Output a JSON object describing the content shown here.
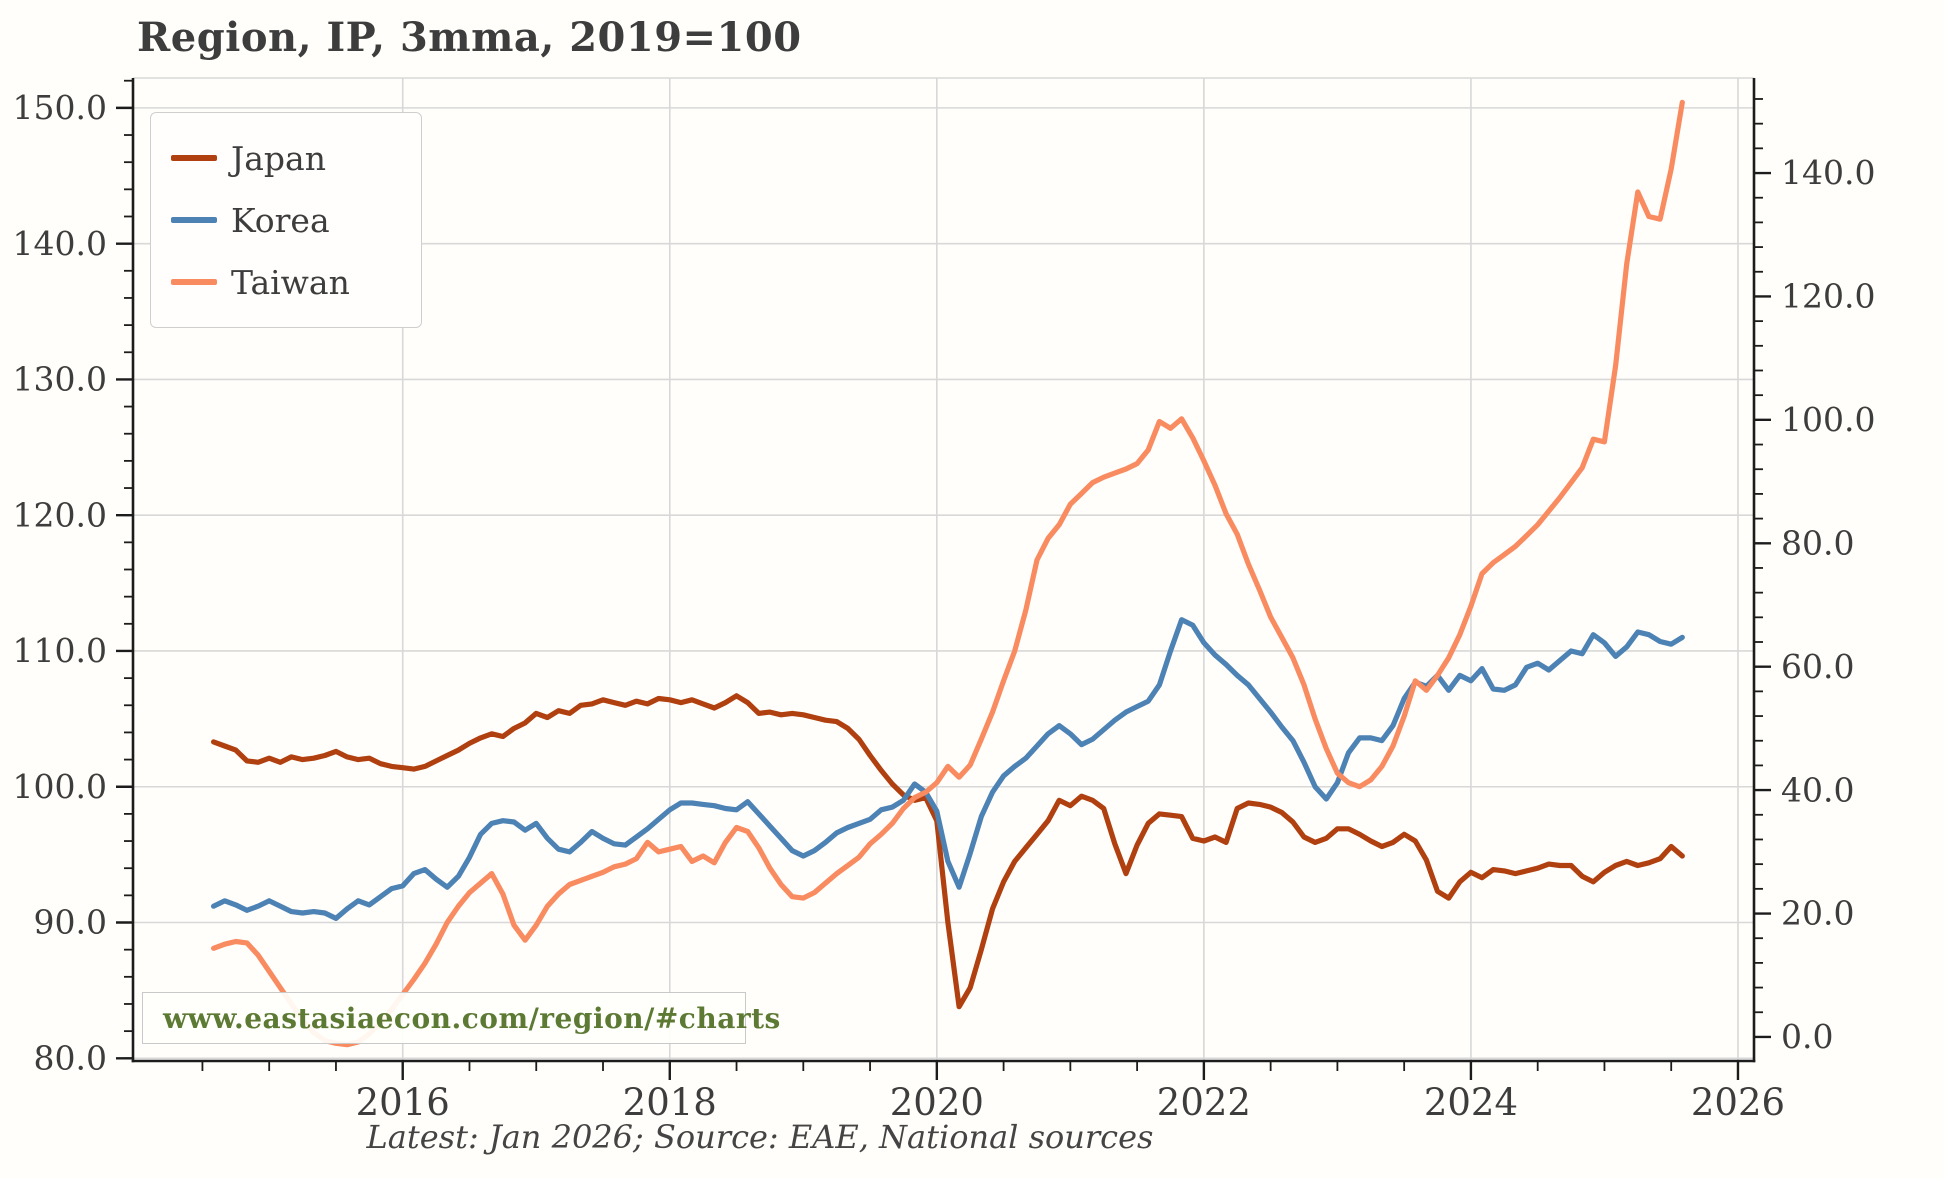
{
  "title": "Region, IP, 3mma, 2019=100",
  "watermark": "www.eastasiaecon.com/region/#charts",
  "caption": "Latest: Jan 2026; Source: EAE, National sources",
  "colors": {
    "background": "#fffefa",
    "plot_background": "#fffefb",
    "grid": "#d8d8d8",
    "spine": "#1c1c1c",
    "tick": "#1c1c1c",
    "text": "#3d3d3d",
    "caption_text": "#444444",
    "watermark_text": "#5c7a33",
    "japan": "#b0400f",
    "korea": "#4d82b4",
    "taiwan": "#f98b61"
  },
  "chart_data": {
    "type": "line",
    "title": "Region, IP, 3mma, 2019=100",
    "xlabel": "",
    "ylabel": "",
    "legend_position": "upper-left",
    "grid": true,
    "x_start": 2014.5833,
    "x_step_years": 0.083333,
    "x_axis": {
      "min": 2013.98,
      "max": 2026.12,
      "tick_values": [
        2016,
        2018,
        2020,
        2022,
        2024,
        2026
      ],
      "tick_labels": [
        "2016",
        "2018",
        "2020",
        "2022",
        "2024",
        "2026"
      ],
      "minor_step": 0.5
    },
    "left_axis": {
      "min": 79.8,
      "max": 152.2,
      "tick_values": [
        80,
        90,
        100,
        110,
        120,
        130,
        140,
        150
      ],
      "tick_labels": [
        "80.0",
        "90.0",
        "100.0",
        "110.0",
        "120.0",
        "130.0",
        "140.0",
        "150.0"
      ],
      "minor_step": 2
    },
    "right_axis": {
      "min": -3.9,
      "max": 155.4,
      "tick_values": [
        0,
        20,
        40,
        60,
        80,
        100,
        120,
        140
      ],
      "tick_labels": [
        "0.0",
        "20.0",
        "40.0",
        "60.0",
        "80.0",
        "100.0",
        "120.0",
        "140.0"
      ],
      "minor_step": 4
    },
    "series": [
      {
        "name": "Japan",
        "color": "#b0400f",
        "values": [
          103.3,
          103.0,
          102.7,
          101.9,
          101.8,
          102.1,
          101.8,
          102.2,
          102.0,
          102.1,
          102.3,
          102.6,
          102.2,
          102.0,
          102.1,
          101.7,
          101.5,
          101.4,
          101.3,
          101.5,
          101.9,
          102.3,
          102.7,
          103.2,
          103.6,
          103.9,
          103.7,
          104.3,
          104.7,
          105.4,
          105.1,
          105.6,
          105.4,
          106.0,
          106.1,
          106.4,
          106.2,
          106.0,
          106.3,
          106.1,
          106.5,
          106.4,
          106.2,
          106.4,
          106.1,
          105.8,
          106.2,
          106.7,
          106.2,
          105.4,
          105.5,
          105.3,
          105.4,
          105.3,
          105.1,
          104.9,
          104.8,
          104.3,
          103.5,
          102.3,
          101.2,
          100.2,
          99.4,
          99.0,
          99.2,
          97.5,
          90.0,
          83.8,
          85.2,
          88.0,
          91.0,
          93.0,
          94.5,
          95.5,
          96.5,
          97.5,
          99.0,
          98.6,
          99.3,
          99.0,
          98.4,
          95.8,
          93.6,
          95.7,
          97.3,
          98.0,
          97.9,
          97.8,
          96.2,
          96.0,
          96.3,
          95.9,
          98.4,
          98.8,
          98.7,
          98.5,
          98.1,
          97.4,
          96.3,
          95.9,
          96.2,
          96.9,
          96.9,
          96.5,
          96.0,
          95.6,
          95.9,
          96.5,
          96.0,
          94.6,
          92.3,
          91.8,
          93.0,
          93.7,
          93.3,
          93.9,
          93.8,
          93.6,
          93.8,
          94.0,
          94.3,
          94.2,
          94.2,
          93.4,
          93.0,
          93.7,
          94.2,
          94.5,
          94.2,
          94.4,
          94.7,
          95.6,
          94.9
        ]
      },
      {
        "name": "Korea",
        "color": "#4d82b4",
        "values": [
          91.2,
          91.6,
          91.3,
          90.9,
          91.2,
          91.6,
          91.2,
          90.8,
          90.7,
          90.8,
          90.7,
          90.3,
          91.0,
          91.6,
          91.3,
          91.9,
          92.5,
          92.7,
          93.6,
          93.9,
          93.2,
          92.6,
          93.4,
          94.8,
          96.5,
          97.3,
          97.5,
          97.4,
          96.8,
          97.3,
          96.2,
          95.4,
          95.2,
          95.9,
          96.7,
          96.2,
          95.8,
          95.7,
          96.3,
          96.9,
          97.6,
          98.3,
          98.8,
          98.8,
          98.7,
          98.6,
          98.4,
          98.3,
          98.9,
          98.0,
          97.1,
          96.2,
          95.3,
          94.9,
          95.3,
          95.9,
          96.6,
          97.0,
          97.3,
          97.6,
          98.3,
          98.5,
          99.0,
          100.2,
          99.6,
          98.2,
          94.5,
          92.6,
          95.1,
          97.8,
          99.6,
          100.8,
          101.5,
          102.1,
          103.0,
          103.9,
          104.5,
          103.9,
          103.1,
          103.5,
          104.2,
          104.9,
          105.5,
          105.9,
          106.3,
          107.5,
          110.0,
          112.3,
          111.9,
          110.6,
          109.7,
          109.0,
          108.2,
          107.5,
          106.5,
          105.5,
          104.4,
          103.4,
          101.8,
          100.0,
          99.1,
          100.3,
          102.5,
          103.6,
          103.6,
          103.4,
          104.5,
          106.5,
          107.7,
          107.4,
          108.2,
          107.1,
          108.2,
          107.8,
          108.7,
          107.2,
          107.1,
          107.5,
          108.8,
          109.1,
          108.6,
          109.3,
          110.0,
          109.8,
          111.2,
          110.6,
          109.6,
          110.3,
          111.4,
          111.2,
          110.7,
          110.5,
          111.0
        ]
      },
      {
        "name": "Taiwan",
        "color": "#f98b61",
        "values": [
          88.1,
          88.4,
          88.6,
          88.5,
          87.6,
          86.4,
          85.2,
          84.0,
          82.8,
          81.9,
          81.3,
          81.1,
          81.0,
          81.2,
          81.8,
          82.6,
          83.6,
          84.7,
          85.8,
          87.0,
          88.4,
          90.0,
          91.2,
          92.2,
          92.9,
          93.6,
          92.1,
          89.8,
          88.7,
          89.8,
          91.2,
          92.1,
          92.8,
          93.1,
          93.4,
          93.7,
          94.1,
          94.3,
          94.7,
          95.9,
          95.2,
          95.4,
          95.6,
          94.5,
          94.9,
          94.4,
          95.9,
          97.0,
          96.7,
          95.5,
          94.0,
          92.8,
          91.9,
          91.8,
          92.2,
          92.9,
          93.6,
          94.2,
          94.8,
          95.8,
          96.5,
          97.3,
          98.4,
          99.2,
          99.6,
          100.3,
          101.5,
          100.7,
          101.6,
          103.5,
          105.5,
          107.8,
          110.0,
          113.0,
          116.7,
          118.3,
          119.3,
          120.8,
          121.6,
          122.4,
          122.8,
          123.1,
          123.4,
          123.8,
          124.8,
          126.9,
          126.4,
          127.1,
          125.7,
          124.0,
          122.2,
          120.1,
          118.6,
          116.4,
          114.5,
          112.5,
          111.0,
          109.5,
          107.5,
          105.0,
          102.8,
          101.0,
          100.3,
          100.0,
          100.5,
          101.5,
          103.0,
          105.2,
          107.8,
          107.1,
          108.2,
          109.5,
          111.2,
          113.3,
          115.7,
          116.5,
          117.1,
          117.7,
          118.5,
          119.3,
          120.3,
          121.3,
          122.4,
          123.5,
          125.6,
          125.4,
          131.0,
          138.5,
          143.8,
          142.0,
          141.8,
          145.5,
          150.4
        ]
      }
    ]
  }
}
